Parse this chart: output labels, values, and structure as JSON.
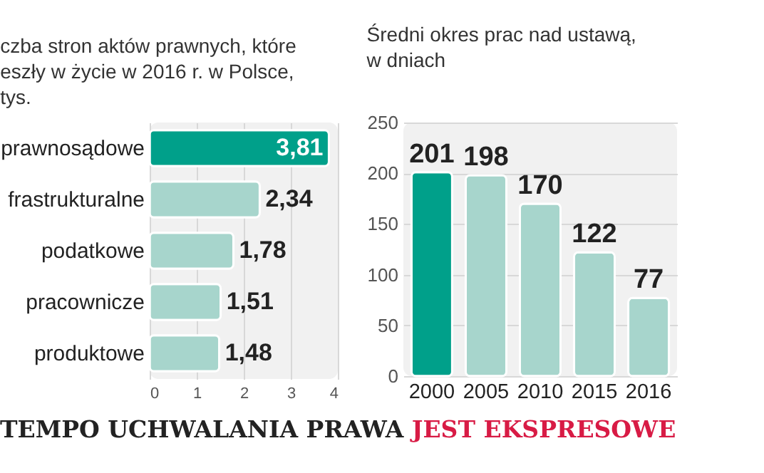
{
  "chart_data": [
    {
      "type": "bar",
      "orientation": "horizontal",
      "title": "czba stron aktów prawnych, które\neszły w życie w 2016 r. w Polsce,\ntys.",
      "categories": [
        "prawnosądowe",
        "frastrukturalne",
        "podatkowe",
        "pracownicze",
        "produktowe"
      ],
      "values": [
        3.81,
        2.34,
        1.78,
        1.51,
        1.48
      ],
      "value_labels": [
        "3,81",
        "2,34",
        "1,78",
        "1,51",
        "1,48"
      ],
      "colors": [
        "#00a08a",
        "#a7d5cc",
        "#a7d5cc",
        "#a7d5cc",
        "#a7d5cc"
      ],
      "xlim": [
        0,
        4
      ],
      "xticks": [
        0,
        1,
        2,
        3,
        4
      ],
      "grid": "x",
      "annotations": [
        "TEMPO UCHWALANIA PRAWA",
        "JEST EKSPRESOWE"
      ]
    },
    {
      "type": "bar",
      "title": "Średni okres prac nad ustawą,\nw dniach",
      "categories": [
        "2000",
        "2005",
        "2010",
        "2015",
        "2016"
      ],
      "values": [
        201,
        198,
        170,
        122,
        77
      ],
      "colors": [
        "#00a08a",
        "#a7d5cc",
        "#a7d5cc",
        "#a7d5cc",
        "#a7d5cc"
      ],
      "ylim": [
        0,
        250
      ],
      "yticks": [
        0,
        50,
        100,
        150,
        200,
        250
      ],
      "grid": "y",
      "data_labels": true
    }
  ]
}
